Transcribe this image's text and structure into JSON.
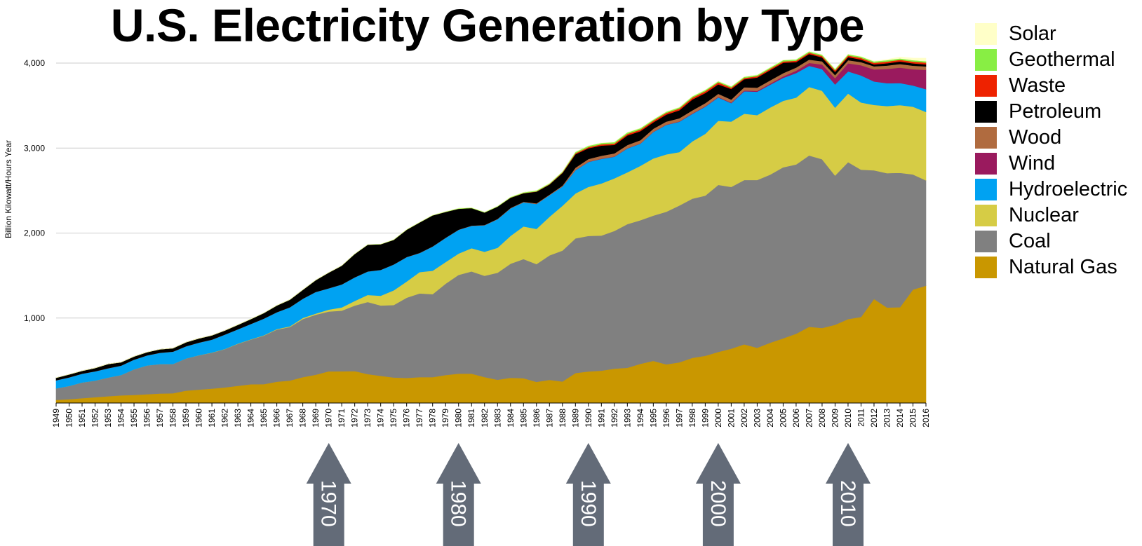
{
  "chart_data": {
    "type": "area",
    "stacked": true,
    "title": "U.S. Electricity Generation by Type",
    "ylabel": "Billion Kilowatt/Hours Year",
    "xlabel": "",
    "ylim": [
      0,
      4000
    ],
    "yticks": [
      1000,
      2000,
      3000,
      4000
    ],
    "ytick_labels": [
      "1,000",
      "2,000",
      "3,000",
      "4,000"
    ],
    "grid": true,
    "legend_position": "right",
    "x": [
      1949,
      1950,
      1951,
      1952,
      1953,
      1954,
      1955,
      1956,
      1957,
      1958,
      1959,
      1960,
      1961,
      1962,
      1963,
      1964,
      1965,
      1966,
      1967,
      1968,
      1969,
      1970,
      1971,
      1972,
      1973,
      1974,
      1975,
      1976,
      1977,
      1978,
      1979,
      1980,
      1981,
      1982,
      1983,
      1984,
      1985,
      1986,
      1987,
      1988,
      1989,
      1990,
      1991,
      1992,
      1993,
      1994,
      1995,
      1996,
      1997,
      1998,
      1999,
      2000,
      2001,
      2002,
      2003,
      2004,
      2005,
      2006,
      2007,
      2008,
      2009,
      2010,
      2011,
      2012,
      2013,
      2014,
      2015,
      2016
    ],
    "series": [
      {
        "name": "Natural Gas",
        "color": "#c99700",
        "values": [
          37,
          45,
          57,
          68,
          80,
          90,
          95,
          104,
          112,
          115,
          146,
          158,
          170,
          184,
          202,
          221,
          222,
          251,
          264,
          304,
          333,
          373,
          374,
          376,
          341,
          320,
          300,
          295,
          305,
          305,
          329,
          346,
          346,
          305,
          274,
          297,
          292,
          249,
          273,
          253,
          353,
          372,
          381,
          404,
          415,
          461,
          496,
          455,
          479,
          531,
          556,
          601,
          639,
          691,
          650,
          710,
          761,
          816,
          897,
          883,
          921,
          988,
          1013,
          1225,
          1124,
          1127,
          1335,
          1380
        ]
      },
      {
        "name": "Coal",
        "color": "#808080",
        "values": [
          135,
          155,
          185,
          195,
          219,
          239,
          301,
          338,
          346,
          344,
          378,
          403,
          422,
          450,
          494,
          526,
          571,
          613,
          630,
          684,
          706,
          704,
          713,
          771,
          848,
          828,
          853,
          944,
          985,
          976,
          1075,
          1162,
          1203,
          1192,
          1259,
          1342,
          1402,
          1386,
          1464,
          1541,
          1584,
          1594,
          1590,
          1621,
          1690,
          1690,
          1709,
          1796,
          1845,
          1873,
          1884,
          1966,
          1904,
          1933,
          1974,
          1978,
          2013,
          1991,
          2016,
          1986,
          1756,
          1847,
          1733,
          1514,
          1581,
          1582,
          1355,
          1240
        ]
      },
      {
        "name": "Nuclear",
        "color": "#d6cc45",
        "values": [
          0,
          0,
          0,
          0,
          0,
          0,
          0,
          0,
          0,
          0,
          0,
          1,
          2,
          2,
          3,
          3,
          4,
          6,
          8,
          13,
          14,
          22,
          38,
          54,
          83,
          114,
          173,
          191,
          251,
          276,
          255,
          251,
          273,
          283,
          294,
          328,
          384,
          414,
          455,
          527,
          529,
          577,
          613,
          619,
          610,
          640,
          673,
          675,
          629,
          674,
          728,
          754,
          769,
          780,
          764,
          789,
          782,
          787,
          806,
          806,
          799,
          807,
          790,
          769,
          789,
          797,
          797,
          805
        ]
      },
      {
        "name": "Hydroelectric",
        "color": "#00a2f2",
        "values": [
          95,
          101,
          103,
          110,
          110,
          110,
          114,
          118,
          133,
          145,
          143,
          149,
          152,
          169,
          168,
          180,
          196,
          198,
          224,
          226,
          254,
          251,
          270,
          278,
          276,
          304,
          304,
          287,
          224,
          284,
          284,
          279,
          263,
          312,
          336,
          324,
          284,
          294,
          253,
          226,
          273,
          293,
          289,
          254,
          281,
          261,
          311,
          347,
          357,
          324,
          319,
          275,
          217,
          264,
          275,
          268,
          270,
          289,
          248,
          254,
          273,
          260,
          319,
          276,
          269,
          259,
          249,
          268
        ]
      },
      {
        "name": "Wind",
        "color": "#9a1a5e",
        "values": [
          0,
          0,
          0,
          0,
          0,
          0,
          0,
          0,
          0,
          0,
          0,
          0,
          0,
          0,
          0,
          0,
          0,
          0,
          0,
          0,
          0,
          0,
          0,
          0,
          0,
          0,
          0,
          0,
          0,
          0,
          0,
          0,
          0,
          0,
          0,
          0,
          0,
          0,
          0,
          1,
          2,
          3,
          3,
          3,
          3,
          3,
          3,
          3,
          4,
          5,
          5,
          6,
          7,
          10,
          11,
          14,
          18,
          27,
          35,
          55,
          74,
          95,
          120,
          141,
          168,
          182,
          191,
          227
        ]
      },
      {
        "name": "Wood",
        "color": "#b06b3f",
        "values": [
          1,
          1,
          1,
          1,
          1,
          1,
          1,
          1,
          1,
          1,
          1,
          1,
          1,
          1,
          1,
          1,
          1,
          1,
          1,
          1,
          1,
          1,
          1,
          1,
          1,
          1,
          1,
          2,
          2,
          2,
          2,
          2,
          3,
          3,
          4,
          5,
          6,
          7,
          8,
          10,
          28,
          32,
          34,
          36,
          37,
          38,
          36,
          36,
          37,
          36,
          37,
          37,
          35,
          38,
          37,
          38,
          38,
          38,
          39,
          37,
          36,
          37,
          37,
          37,
          40,
          42,
          42,
          41
        ]
      },
      {
        "name": "Petroleum",
        "color": "#000000",
        "values": [
          29,
          34,
          33,
          38,
          49,
          40,
          37,
          37,
          40,
          40,
          47,
          48,
          49,
          48,
          52,
          57,
          65,
          79,
          89,
          104,
          138,
          184,
          220,
          274,
          314,
          301,
          289,
          320,
          358,
          365,
          304,
          246,
          206,
          147,
          144,
          120,
          100,
          137,
          118,
          149,
          158,
          127,
          119,
          100,
          113,
          106,
          75,
          82,
          93,
          128,
          118,
          111,
          125,
          94,
          119,
          121,
          122,
          64,
          66,
          46,
          39,
          37,
          30,
          23,
          27,
          30,
          28,
          24
        ]
      },
      {
        "name": "Waste",
        "color": "#ee2200",
        "values": [
          0,
          0,
          0,
          0,
          0,
          0,
          0,
          0,
          0,
          0,
          0,
          0,
          0,
          0,
          0,
          0,
          0,
          0,
          0,
          0,
          0,
          0,
          0,
          0,
          0,
          0,
          0,
          0,
          0,
          0,
          0,
          0,
          0,
          0,
          0,
          1,
          2,
          3,
          4,
          6,
          12,
          14,
          16,
          17,
          18,
          19,
          20,
          20,
          21,
          22,
          22,
          23,
          15,
          15,
          16,
          16,
          16,
          16,
          16,
          17,
          18,
          18,
          19,
          19,
          20,
          20,
          21,
          21
        ]
      },
      {
        "name": "Geothermal",
        "color": "#88ee44",
        "values": [
          0,
          0,
          0,
          0,
          0,
          0,
          0,
          0,
          0,
          0,
          0,
          0,
          0,
          0,
          1,
          1,
          1,
          1,
          1,
          1,
          1,
          1,
          1,
          2,
          2,
          2,
          3,
          3,
          3,
          3,
          4,
          5,
          5,
          5,
          6,
          7,
          9,
          10,
          10,
          10,
          15,
          15,
          15,
          16,
          17,
          16,
          13,
          14,
          15,
          15,
          15,
          14,
          14,
          14,
          14,
          15,
          15,
          15,
          15,
          15,
          15,
          15,
          16,
          16,
          16,
          16,
          16,
          16
        ]
      },
      {
        "name": "Solar",
        "color": "#ffffc8",
        "values": [
          0,
          0,
          0,
          0,
          0,
          0,
          0,
          0,
          0,
          0,
          0,
          0,
          0,
          0,
          0,
          0,
          0,
          0,
          0,
          0,
          0,
          0,
          0,
          0,
          0,
          0,
          0,
          0,
          0,
          0,
          0,
          0,
          0,
          0,
          0,
          0,
          0,
          0,
          0,
          0,
          0,
          0,
          1,
          1,
          1,
          1,
          1,
          1,
          1,
          1,
          1,
          1,
          1,
          1,
          1,
          1,
          1,
          1,
          1,
          1,
          1,
          1,
          2,
          4,
          9,
          17,
          25,
          36
        ]
      }
    ],
    "annotations": [
      {
        "label": "1970",
        "x": 1970,
        "shape": "arrow-up"
      },
      {
        "label": "1980",
        "x": 1980,
        "shape": "arrow-up"
      },
      {
        "label": "1990",
        "x": 1990,
        "shape": "arrow-up"
      },
      {
        "label": "2000",
        "x": 2000,
        "shape": "arrow-up"
      },
      {
        "label": "2010",
        "x": 2010,
        "shape": "arrow-up"
      }
    ],
    "gridline_color": "#cccccc",
    "arrow_color": "#636b78"
  }
}
